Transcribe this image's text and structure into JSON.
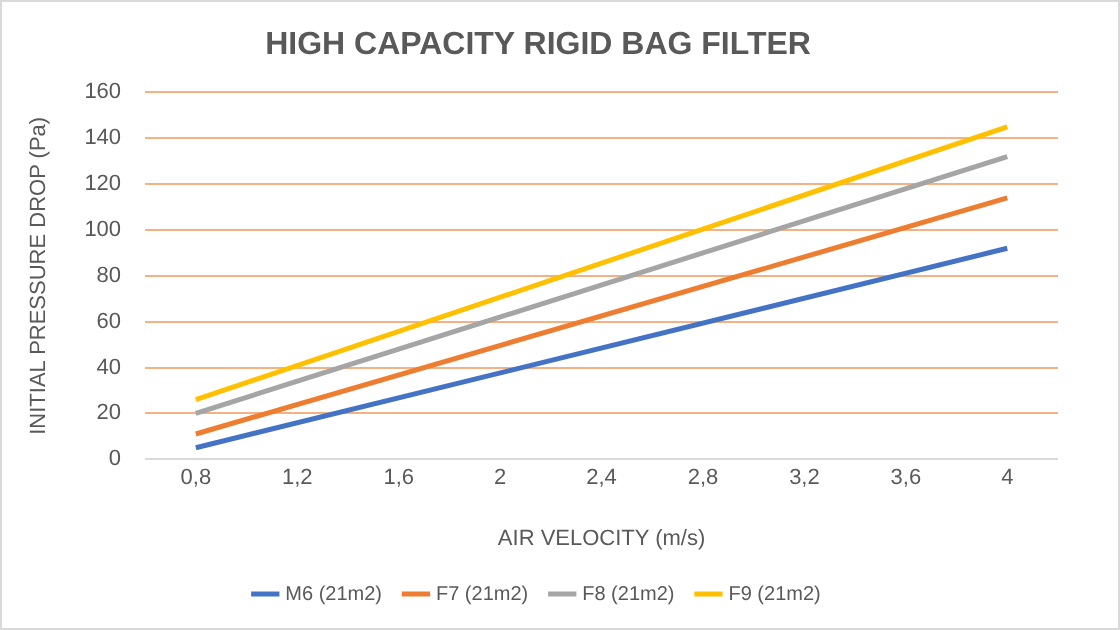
{
  "chart_data": {
    "type": "line",
    "title": "HIGH CAPACITY RIGID BAG FILTER",
    "xlabel": "AIR VELOCITY (m/s)",
    "ylabel": "INITIAL PRESSURE DROP (Pa)",
    "x": [
      0.8,
      4
    ],
    "xlim": [
      0.6,
      4.2
    ],
    "xticks": [
      {
        "value": 0.8,
        "label": "0,8"
      },
      {
        "value": 1.2,
        "label": "1,2"
      },
      {
        "value": 1.6,
        "label": "1,6"
      },
      2,
      {
        "value": 2.4,
        "label": "2,4"
      },
      {
        "value": 2.8,
        "label": "2,8"
      },
      {
        "value": 3.2,
        "label": "3,2"
      },
      {
        "value": 3.6,
        "label": "3,6"
      },
      4
    ],
    "ylim": [
      0,
      160
    ],
    "yticks": [
      0,
      20,
      40,
      60,
      80,
      100,
      120,
      140,
      160
    ],
    "series": [
      {
        "name": "M6 (21m2)",
        "color": "#4472c4",
        "values": [
          5,
          92
        ]
      },
      {
        "name": "F7 (21m2)",
        "color": "#ed7d31",
        "values": [
          11,
          114
        ]
      },
      {
        "name": "F8 (21m2)",
        "color": "#a5a5a5",
        "values": [
          20,
          132
        ]
      },
      {
        "name": "F9 (21m2)",
        "color": "#ffc000",
        "values": [
          26,
          145
        ]
      }
    ],
    "grid": "y",
    "legend": "bottom",
    "marker": "none",
    "line_style": "solid"
  }
}
